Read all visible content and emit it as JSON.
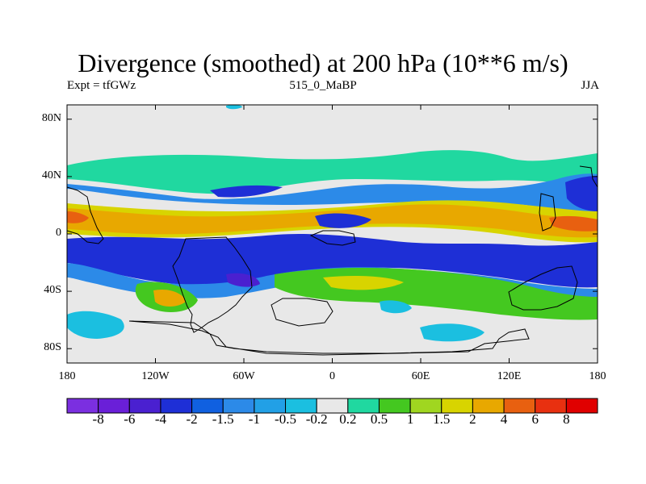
{
  "title": "Divergence (smoothed) at 200 hPa (10**6 m/s)",
  "subtitle_left": "Expt = tfGWz",
  "subtitle_center": "515_0_MaBP",
  "subtitle_right": "JJA",
  "lat_ticks": [
    {
      "label": "80N",
      "lat": 80
    },
    {
      "label": "40N",
      "lat": 40
    },
    {
      "label": "0",
      "lat": 0
    },
    {
      "label": "40S",
      "lat": -40
    },
    {
      "label": "80S",
      "lat": -80
    }
  ],
  "lon_ticks": [
    {
      "label": "180",
      "lon": -180
    },
    {
      "label": "120W",
      "lon": -120
    },
    {
      "label": "60W",
      "lon": -60
    },
    {
      "label": "0",
      "lon": 0
    },
    {
      "label": "60E",
      "lon": 60
    },
    {
      "label": "120E",
      "lon": 120
    },
    {
      "label": "180",
      "lon": 180
    }
  ],
  "colorbar": {
    "colors": [
      "#7b2fe0",
      "#6a1fd8",
      "#4a20d0",
      "#1e2fd6",
      "#1060e0",
      "#2c8ae8",
      "#22a0e6",
      "#1bbfe0",
      "#e8e8e8",
      "#20d8a0",
      "#44c820",
      "#a0d620",
      "#d8d400",
      "#e8a800",
      "#e86010",
      "#e83010",
      "#e00000"
    ],
    "labels": [
      "-8",
      "-6",
      "-4",
      "-2",
      "-1.5",
      "-1",
      "-0.5",
      "-0.2",
      "0.2",
      "0.5",
      "1",
      "1.5",
      "2",
      "4",
      "6",
      "8"
    ]
  }
}
